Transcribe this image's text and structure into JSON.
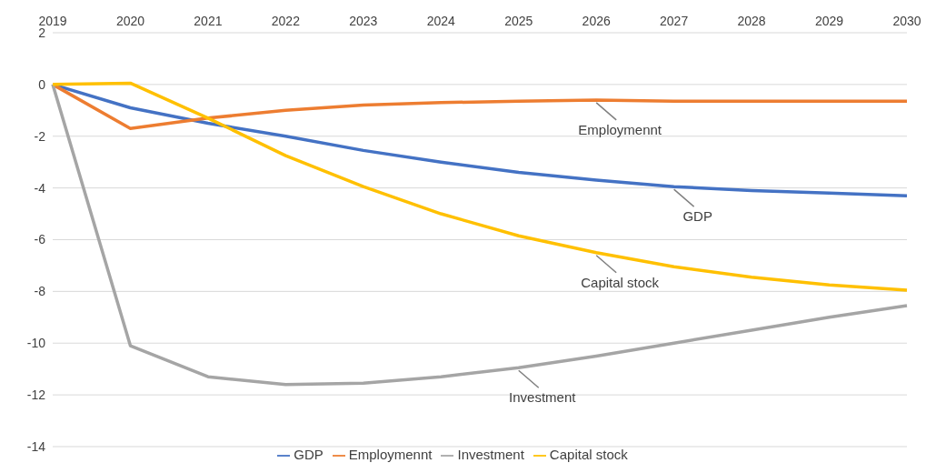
{
  "chart_data": {
    "type": "line",
    "categories": [
      "2019",
      "2020",
      "2021",
      "2022",
      "2023",
      "2024",
      "2025",
      "2026",
      "2027",
      "2028",
      "2029",
      "2030"
    ],
    "series": [
      {
        "name": "GDP",
        "color": "#4472c4",
        "values": [
          0,
          -0.9,
          -1.5,
          -2.0,
          -2.55,
          -3.0,
          -3.4,
          -3.7,
          -3.95,
          -4.1,
          -4.2,
          -4.3
        ]
      },
      {
        "name": "Employmennt",
        "color": "#ed7d31",
        "values": [
          0,
          -1.7,
          -1.3,
          -1.0,
          -0.8,
          -0.7,
          -0.65,
          -0.6,
          -0.65,
          -0.65,
          -0.65,
          -0.65
        ]
      },
      {
        "name": "Investment",
        "color": "#a5a5a5",
        "values": [
          0,
          -10.1,
          -11.3,
          -11.6,
          -11.55,
          -11.3,
          -10.95,
          -10.5,
          -10.0,
          -9.5,
          -9.0,
          -8.55
        ]
      },
      {
        "name": "Capital stock",
        "color": "#ffc000",
        "values": [
          0,
          0.05,
          -1.3,
          -2.75,
          -3.95,
          -5.0,
          -5.85,
          -6.5,
          -7.05,
          -7.45,
          -7.75,
          -7.95
        ]
      }
    ],
    "annotations": [
      {
        "text": "Employmennt",
        "x": "2026",
        "y": -0.6
      },
      {
        "text": "GDP",
        "x": "2027",
        "y": -3.95
      },
      {
        "text": "Capital stock",
        "x": "2026",
        "y": -6.5
      },
      {
        "text": "Investment",
        "x": "2025",
        "y": -10.95
      }
    ],
    "ylim": [
      -14,
      2
    ],
    "yticks": [
      -14,
      -12,
      -10,
      -8,
      -6,
      -4,
      -2,
      0,
      2
    ],
    "grid": "y",
    "legend": "bottom",
    "marker": "none",
    "line_style": "solid"
  }
}
